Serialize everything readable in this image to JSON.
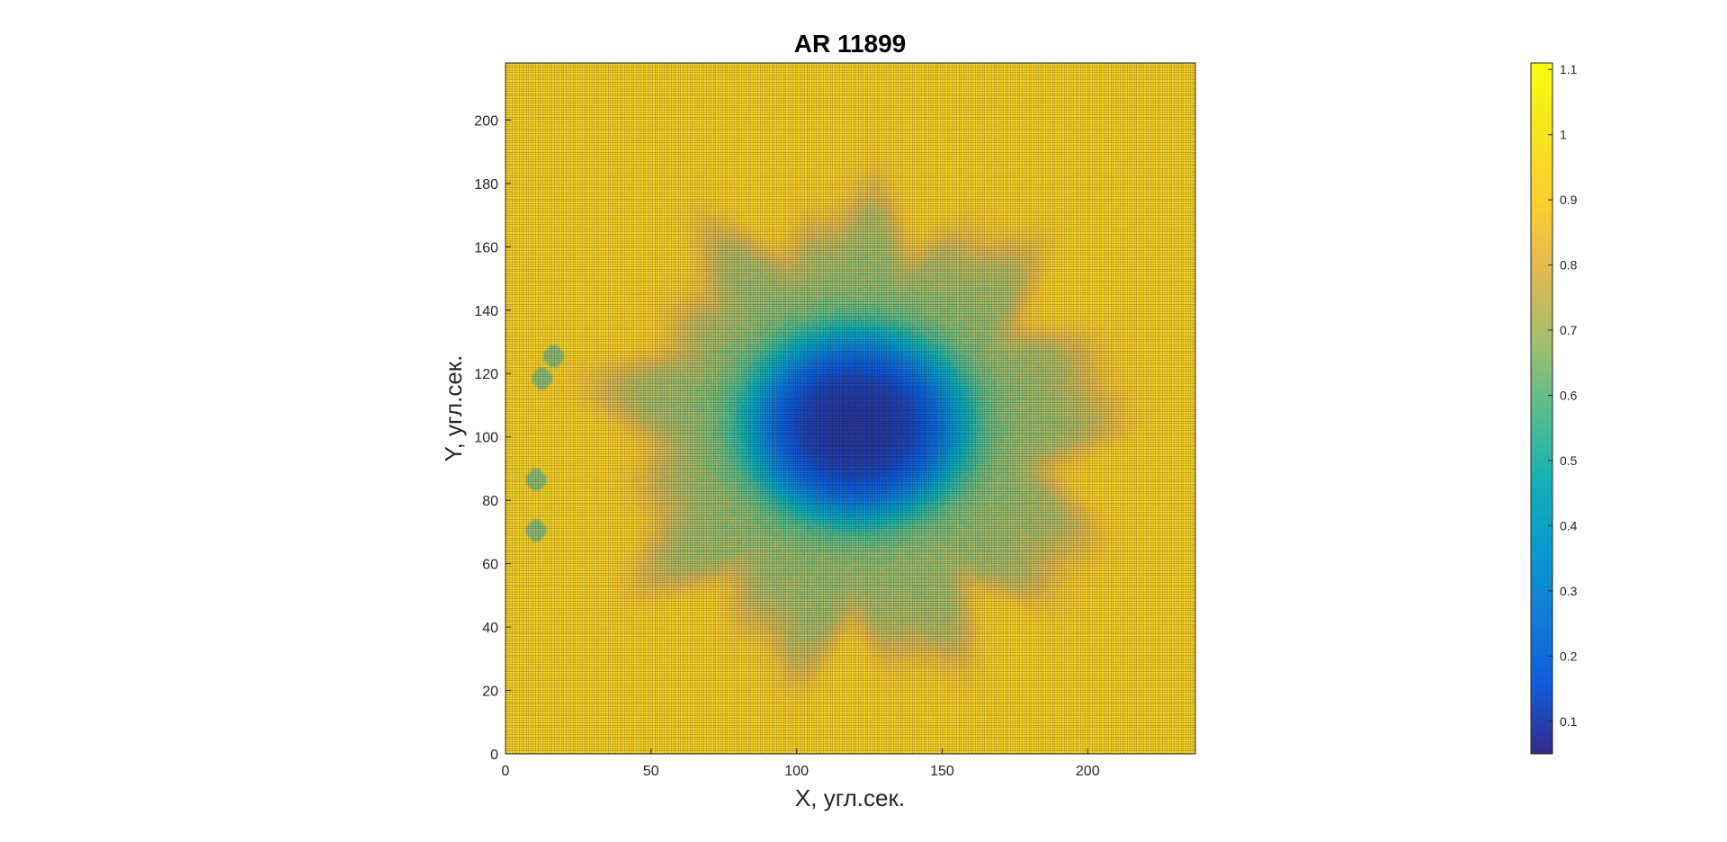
{
  "chart_data": {
    "type": "heatmap",
    "title": "AR 11899",
    "xlabel": "X, угл.сек.",
    "ylabel": "Y, угл.сек.",
    "xlim": [
      0,
      237
    ],
    "ylim": [
      0,
      218
    ],
    "xticks": [
      0,
      50,
      100,
      150,
      200
    ],
    "yticks": [
      0,
      20,
      40,
      60,
      80,
      100,
      120,
      140,
      160,
      180,
      200
    ],
    "colorbar": {
      "colormap": "parula",
      "clim": [
        0.05,
        1.11
      ],
      "ticks": [
        0.1,
        0.2,
        0.3,
        0.4,
        0.5,
        0.6,
        0.7,
        0.8,
        0.9,
        1,
        1.1
      ],
      "tick_labels": [
        "0.1",
        "0.2",
        "0.3",
        "0.4",
        "0.5",
        "0.6",
        "0.7",
        "0.8",
        "0.9",
        "1",
        "1.1"
      ],
      "placement": "right"
    },
    "features": {
      "background_level": 0.93,
      "umbra": {
        "center": [
          120,
          103
        ],
        "radii": [
          35,
          28
        ],
        "min_value": 0.08
      },
      "penumbra": {
        "center": [
          122,
          100
        ],
        "radii": [
          78,
          68
        ],
        "value": 0.68
      },
      "small_pores": [
        [
          12,
          118
        ],
        [
          16,
          125
        ],
        [
          10,
          86
        ],
        [
          10,
          70
        ]
      ]
    },
    "grid": true
  }
}
